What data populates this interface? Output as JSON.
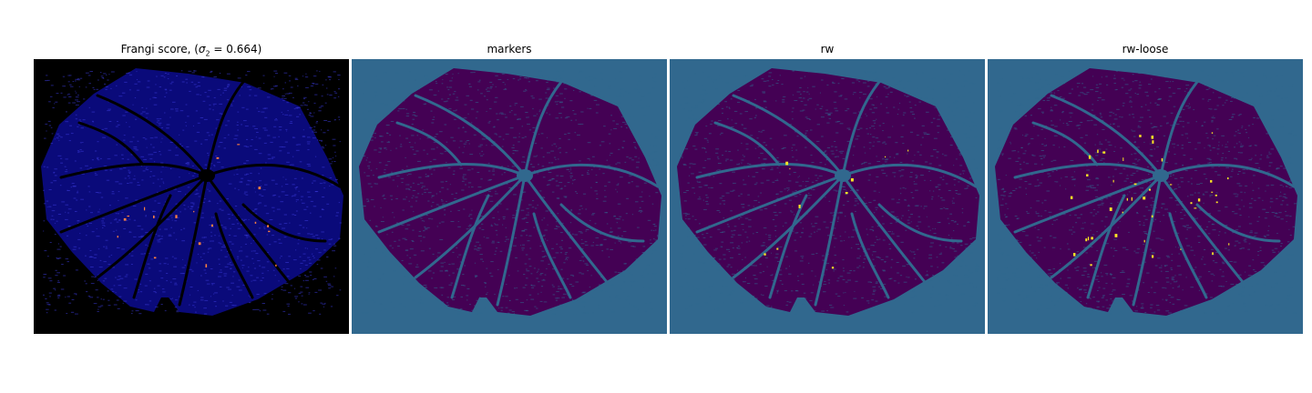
{
  "panels": [
    {
      "title_prefix": "Frangi score, (",
      "title_symbol": "σ",
      "title_subscript": "2",
      "title_suffix": " = 0.664)",
      "background": "#000000",
      "fill": "#0a0a7a",
      "vessel": "#000000",
      "noise": "#3a3ad8",
      "highlight": "#ff8040"
    },
    {
      "title": "markers",
      "background": "#31688e",
      "fill": "#440154",
      "vessel": "#31688e",
      "noise": "#31688e",
      "highlight": "#31688e"
    },
    {
      "title": "rw",
      "background": "#31688e",
      "fill": "#440154",
      "vessel": "#31688e",
      "noise": "#31688e",
      "highlight": "#fde725"
    },
    {
      "title": "rw-loose",
      "background": "#31688e",
      "fill": "#440154",
      "vessel": "#31688e",
      "noise": "#31688e",
      "highlight": "#fde725"
    }
  ]
}
